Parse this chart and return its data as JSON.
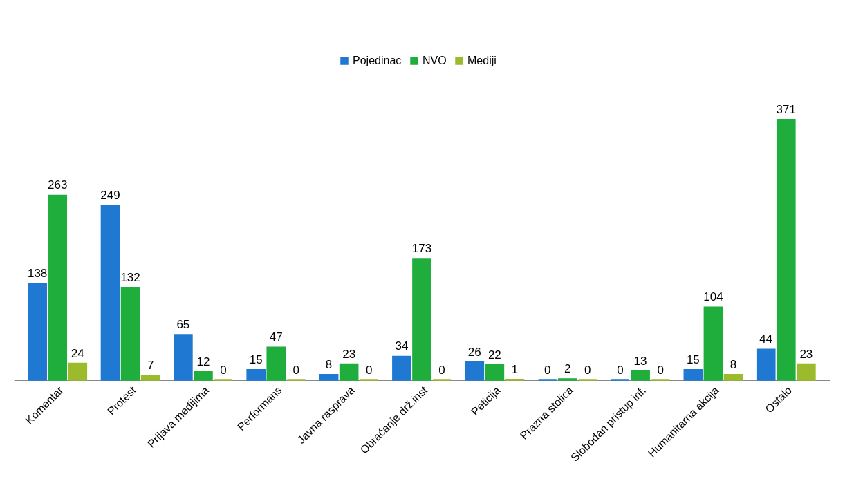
{
  "chart_data": {
    "type": "bar",
    "categories": [
      "Komentar",
      "Protest",
      "Prijava medijima",
      "Performans",
      "Javna rasprava",
      "Obraćanje drž.inst",
      "Peticija",
      "Prazna stolica",
      "Slobodan pristup inf.",
      "Humanitarna akcija",
      "Ostalo"
    ],
    "series": [
      {
        "name": "Pojedinac",
        "color": "#1f78d1",
        "values": [
          138,
          249,
          65,
          15,
          8,
          34,
          26,
          0,
          0,
          15,
          44
        ]
      },
      {
        "name": "NVO",
        "color": "#1fae3c",
        "values": [
          263,
          132,
          12,
          47,
          23,
          173,
          22,
          2,
          13,
          104,
          371
        ]
      },
      {
        "name": "Mediji",
        "color": "#9cbb2c",
        "values": [
          24,
          7,
          0,
          0,
          0,
          0,
          1,
          0,
          0,
          8,
          23
        ]
      }
    ],
    "data_labels": true,
    "legend": "top",
    "grid": false
  }
}
